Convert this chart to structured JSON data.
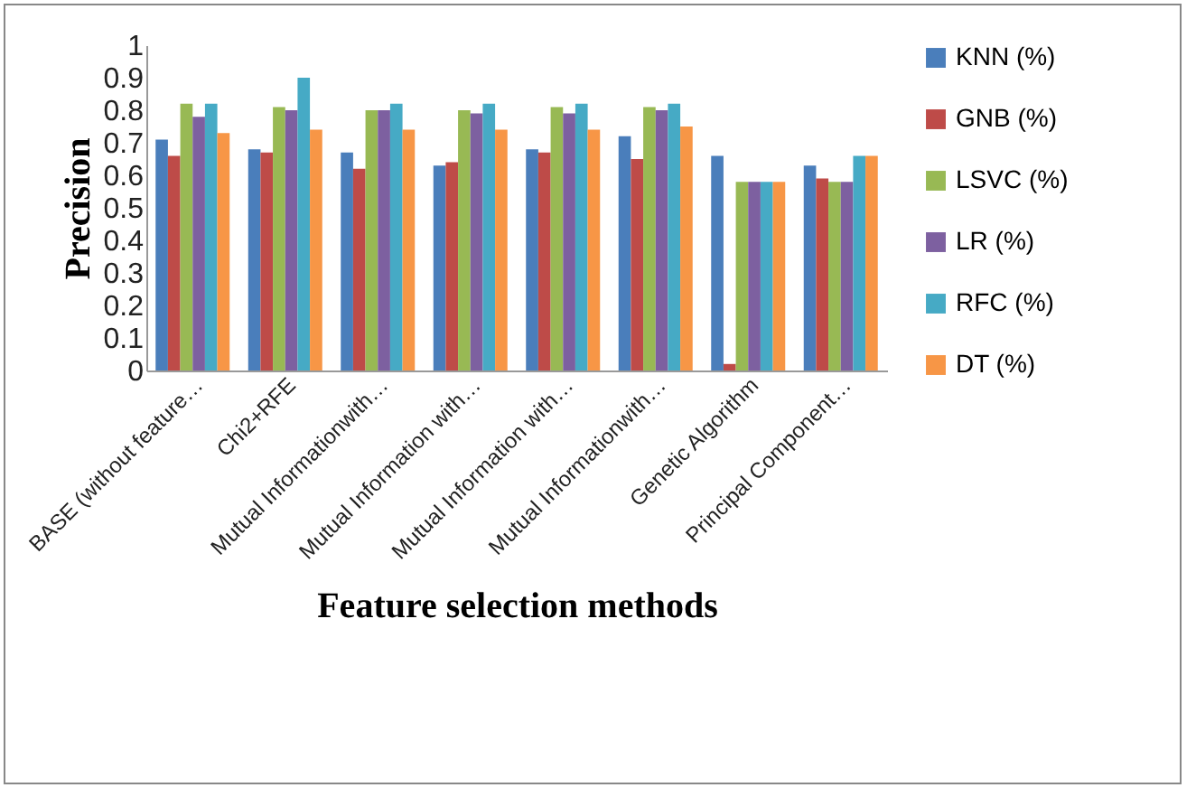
{
  "chart_data": {
    "type": "bar",
    "xlabel": "Feature selection methods",
    "ylabel": "Precision",
    "categories": [
      "BASE (without feature…",
      "Chi2+RFE",
      "Mutual Informationwith…",
      "Mutual Information with…",
      "Mutual Information with…",
      "Mutual Informationwith…",
      "Genetic Algorithm",
      "Principal Component…"
    ],
    "series": [
      {
        "name": "KNN (%)",
        "color": "#4a7ebb",
        "values": [
          0.71,
          0.68,
          0.67,
          0.63,
          0.68,
          0.72,
          0.66,
          0.63
        ]
      },
      {
        "name": "GNB (%)",
        "color": "#be4b48",
        "values": [
          0.66,
          0.67,
          0.62,
          0.64,
          0.67,
          0.65,
          0.02,
          0.59
        ]
      },
      {
        "name": "LSVC (%)",
        "color": "#98b954",
        "values": [
          0.82,
          0.81,
          0.8,
          0.8,
          0.81,
          0.81,
          0.58,
          0.58
        ]
      },
      {
        "name": "LR (%)",
        "color": "#7d60a0",
        "values": [
          0.78,
          0.8,
          0.8,
          0.79,
          0.79,
          0.8,
          0.58,
          0.58
        ]
      },
      {
        "name": "RFC (%)",
        "color": "#46aac5",
        "values": [
          0.82,
          0.9,
          0.82,
          0.82,
          0.82,
          0.82,
          0.58,
          0.66
        ]
      },
      {
        "name": "DT (%)",
        "color": "#f79646",
        "values": [
          0.73,
          0.74,
          0.74,
          0.74,
          0.74,
          0.75,
          0.58,
          0.66
        ]
      }
    ],
    "ylim": [
      0,
      1
    ],
    "yticks": [
      0,
      0.1,
      0.2,
      0.3,
      0.4,
      0.5,
      0.6,
      0.7,
      0.8,
      0.9,
      1
    ],
    "grid": false,
    "legend": "right"
  }
}
